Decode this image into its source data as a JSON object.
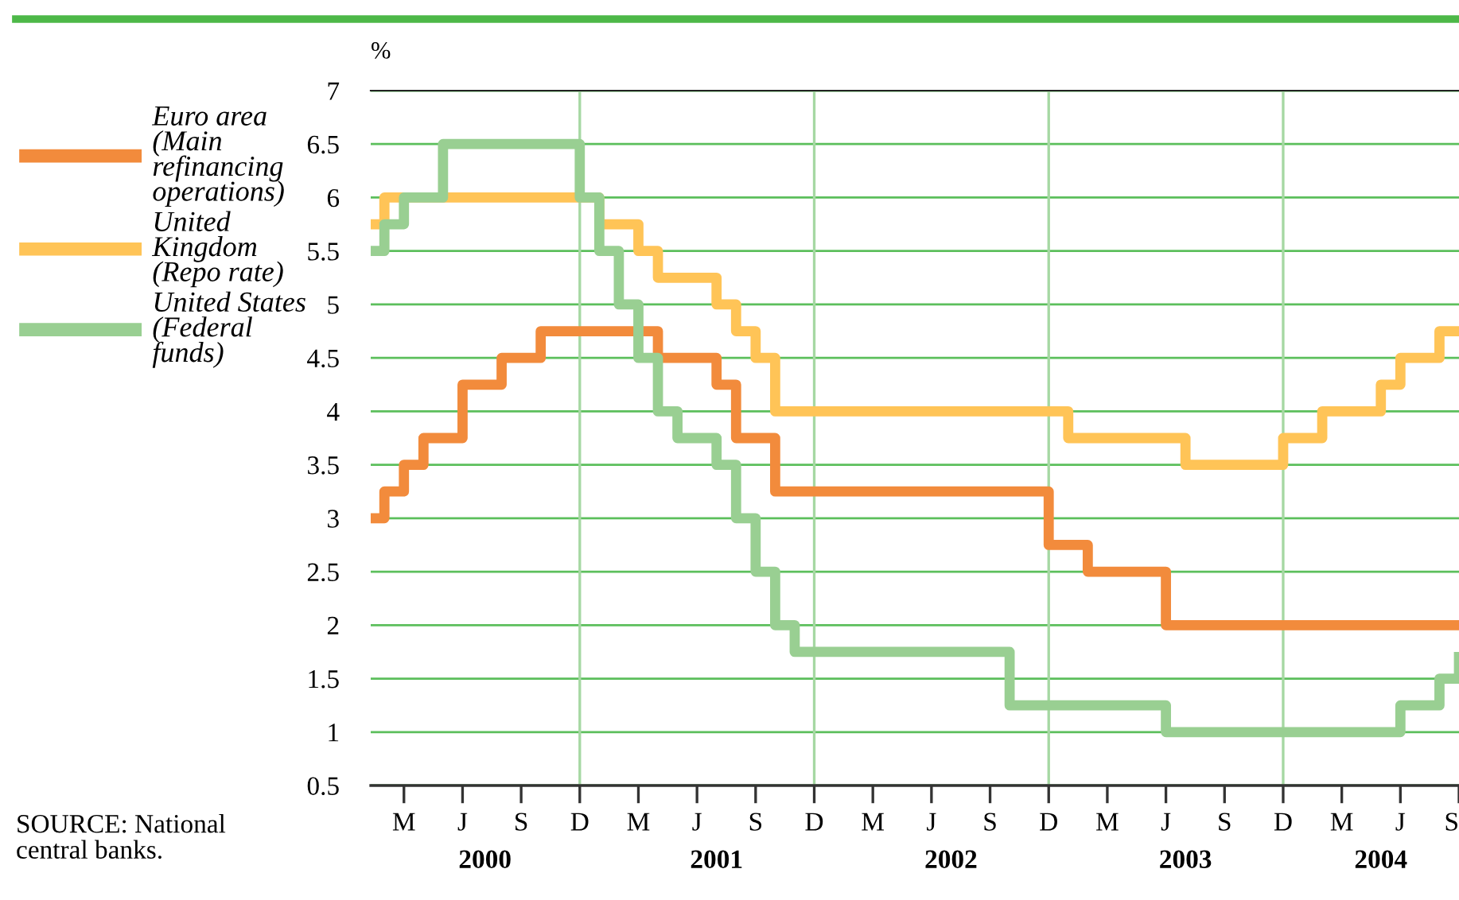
{
  "chart_data": {
    "type": "step",
    "ylabel": "%",
    "categories": [
      null,
      null,
      "M",
      null,
      null,
      "J",
      null,
      null,
      "S",
      null,
      null,
      "D",
      null,
      null,
      "M",
      null,
      null,
      "J",
      null,
      null,
      "S",
      null,
      null,
      "D",
      null,
      null,
      "M",
      null,
      null,
      "J",
      null,
      null,
      "S",
      null,
      null,
      "D",
      null,
      null,
      "M",
      null,
      null,
      "J",
      null,
      null,
      "S",
      null,
      null,
      "D",
      null,
      null,
      "M",
      null,
      null,
      "J",
      null,
      null,
      "S"
    ],
    "ylim": [
      0.5,
      7
    ],
    "yticks": [
      0.5,
      1,
      1.5,
      2,
      2.5,
      3,
      3.5,
      4,
      4.5,
      5,
      5.5,
      6,
      6.5,
      7
    ],
    "grid": true,
    "legend": "left",
    "line_style": "solid",
    "marker": "none",
    "series": [
      {
        "name": "Euro area\n(Main\nrefinancing\noperations)",
        "color": "#f28b3c",
        "values": [
          3.0,
          3.25,
          3.5,
          3.75,
          3.75,
          4.25,
          4.25,
          4.5,
          4.5,
          4.75,
          4.75,
          4.75,
          4.75,
          4.75,
          4.75,
          4.5,
          4.5,
          4.5,
          4.25,
          3.75,
          3.75,
          3.25,
          3.25,
          3.25,
          3.25,
          3.25,
          3.25,
          3.25,
          3.25,
          3.25,
          3.25,
          3.25,
          3.25,
          3.25,
          3.25,
          2.75,
          2.75,
          2.5,
          2.5,
          2.5,
          2.5,
          2.0,
          2.0,
          2.0,
          2.0,
          2.0,
          2.0,
          2.0,
          2.0,
          2.0,
          2.0,
          2.0,
          2.0,
          2.0,
          2.0,
          2.0,
          2.0
        ]
      },
      {
        "name": "United\nKingdom\n(Repo rate)",
        "color": "#ffc457",
        "values": [
          5.75,
          6.0,
          6.0,
          6.0,
          6.0,
          6.0,
          6.0,
          6.0,
          6.0,
          6.0,
          6.0,
          6.0,
          5.75,
          5.75,
          5.5,
          5.25,
          5.25,
          5.25,
          5.0,
          4.75,
          4.5,
          4.0,
          4.0,
          4.0,
          4.0,
          4.0,
          4.0,
          4.0,
          4.0,
          4.0,
          4.0,
          4.0,
          4.0,
          4.0,
          4.0,
          4.0,
          3.75,
          3.75,
          3.75,
          3.75,
          3.75,
          3.75,
          3.5,
          3.5,
          3.5,
          3.5,
          3.5,
          3.75,
          3.75,
          4.0,
          4.0,
          4.0,
          4.25,
          4.5,
          4.5,
          4.75,
          4.75
        ]
      },
      {
        "name": "United States\n(Federal\nfunds)",
        "color": "#99cf92",
        "values": [
          5.5,
          5.75,
          6.0,
          6.0,
          6.5,
          6.5,
          6.5,
          6.5,
          6.5,
          6.5,
          6.5,
          6.0,
          5.5,
          5.0,
          4.5,
          4.0,
          3.75,
          3.75,
          3.5,
          3.0,
          2.5,
          2.0,
          1.75,
          1.75,
          1.75,
          1.75,
          1.75,
          1.75,
          1.75,
          1.75,
          1.75,
          1.75,
          1.75,
          1.25,
          1.25,
          1.25,
          1.25,
          1.25,
          1.25,
          1.25,
          1.25,
          1.0,
          1.0,
          1.0,
          1.0,
          1.0,
          1.0,
          1.0,
          1.0,
          1.0,
          1.0,
          1.0,
          1.0,
          1.25,
          1.25,
          1.5,
          1.75
        ]
      }
    ],
    "annotations": [
      "SOURCE: National\ncentral banks.",
      "2000",
      "2001",
      "2002",
      "2003",
      "2004"
    ]
  }
}
